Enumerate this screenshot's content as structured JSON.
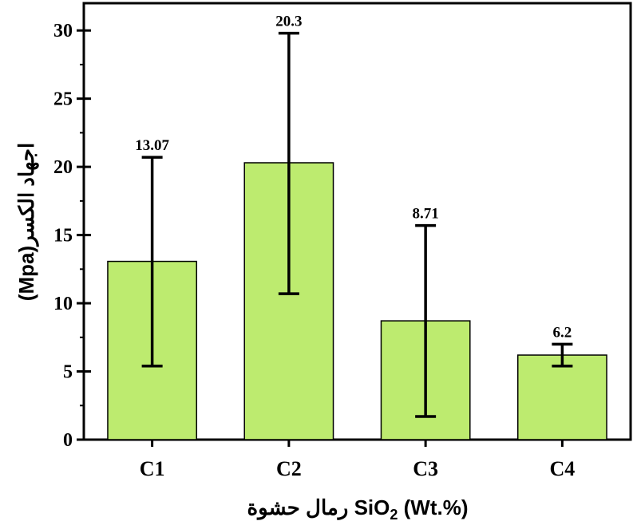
{
  "chart_data": {
    "type": "bar",
    "categories": [
      "C1",
      "C2",
      "C3",
      "C4"
    ],
    "values": [
      13.07,
      20.3,
      8.71,
      6.2
    ],
    "error_upper": [
      20.7,
      29.8,
      15.7,
      7.0
    ],
    "error_lower": [
      5.4,
      10.7,
      1.7,
      5.4
    ],
    "data_labels": [
      "13.07",
      "20.3",
      "8.71",
      "6.2"
    ],
    "ylabel": "(Mpa)اجهاد الكسر",
    "xlabel_parts": [
      "رمال حشوة SiO",
      "2",
      " (Wt.%)"
    ],
    "ylim": [
      0,
      32
    ],
    "yticks": [
      0,
      5,
      10,
      15,
      20,
      25,
      30
    ],
    "bar_color": "#bdeb6f",
    "bar_edge_color": "#000000",
    "grid": false,
    "legend": "none"
  }
}
